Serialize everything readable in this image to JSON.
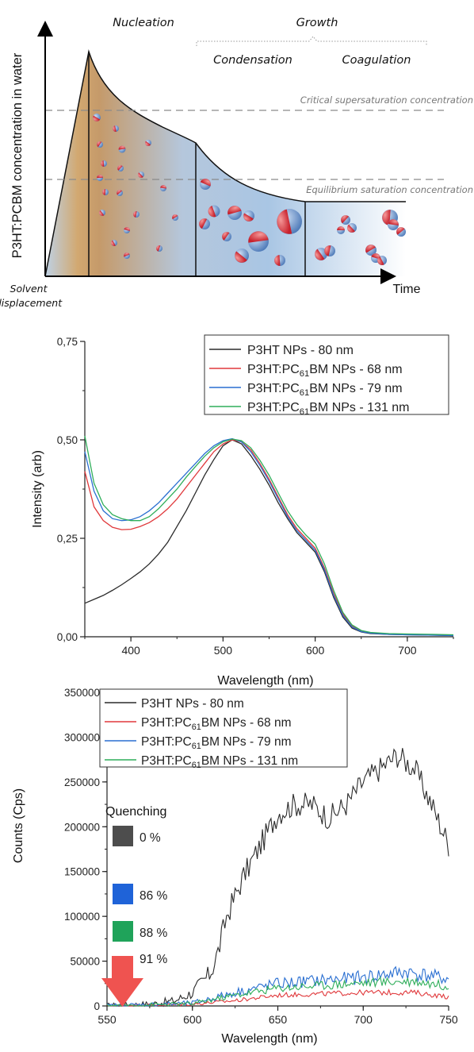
{
  "chart_data": [
    {
      "type": "diagram",
      "ylabel": "P3HT:PCBM concentration in water",
      "xlabel": "Time",
      "phases": {
        "nucleation": "Nucleation",
        "growth": "Growth",
        "condensation": "Condensation",
        "coagulation": "Coagulation",
        "solvent_line1": "Solvent",
        "solvent_line2": "displacement"
      },
      "levels": {
        "critical": "Critical supersaturation concentration",
        "equilibrium": "Equilibrium saturation concentration"
      }
    },
    {
      "type": "line",
      "xlabel": "Wavelength (nm)",
      "ylabel": "Intensity (arb)",
      "xlim": [
        350,
        750
      ],
      "ylim": [
        0,
        0.75
      ],
      "xticks": [
        400,
        500,
        600,
        700
      ],
      "yticks": [
        {
          "value": 0.0,
          "label": "0,00"
        },
        {
          "value": 0.25,
          "label": "0,25"
        },
        {
          "value": 0.5,
          "label": "0,50"
        },
        {
          "value": 0.75,
          "label": "0,75"
        }
      ],
      "legend_position": "top-right",
      "series": [
        {
          "name_main": "P3HT NPs - 80 nm",
          "name_sub": "",
          "name_tail": "",
          "color": "#2b2b2b",
          "points": [
            [
              350,
              0.085
            ],
            [
              360,
              0.095
            ],
            [
              370,
              0.105
            ],
            [
              380,
              0.118
            ],
            [
              390,
              0.132
            ],
            [
              400,
              0.148
            ],
            [
              410,
              0.165
            ],
            [
              420,
              0.185
            ],
            [
              430,
              0.21
            ],
            [
              440,
              0.24
            ],
            [
              450,
              0.28
            ],
            [
              460,
              0.32
            ],
            [
              470,
              0.365
            ],
            [
              480,
              0.41
            ],
            [
              490,
              0.45
            ],
            [
              500,
              0.485
            ],
            [
              510,
              0.5
            ],
            [
              520,
              0.49
            ],
            [
              530,
              0.46
            ],
            [
              540,
              0.425
            ],
            [
              550,
              0.385
            ],
            [
              560,
              0.34
            ],
            [
              570,
              0.3
            ],
            [
              580,
              0.265
            ],
            [
              590,
              0.24
            ],
            [
              600,
              0.215
            ],
            [
              610,
              0.165
            ],
            [
              620,
              0.1
            ],
            [
              630,
              0.05
            ],
            [
              640,
              0.022
            ],
            [
              650,
              0.012
            ],
            [
              660,
              0.008
            ],
            [
              680,
              0.006
            ],
            [
              700,
              0.005
            ],
            [
              730,
              0.004
            ],
            [
              750,
              0.003
            ]
          ]
        },
        {
          "name_main": "P3HT:PC",
          "name_sub": "61",
          "name_tail": "BM NPs - 68 nm",
          "color": "#e0383b",
          "points": [
            [
              350,
              0.42
            ],
            [
              360,
              0.33
            ],
            [
              370,
              0.295
            ],
            [
              380,
              0.278
            ],
            [
              390,
              0.272
            ],
            [
              400,
              0.273
            ],
            [
              410,
              0.28
            ],
            [
              420,
              0.29
            ],
            [
              430,
              0.305
            ],
            [
              440,
              0.325
            ],
            [
              450,
              0.35
            ],
            [
              460,
              0.38
            ],
            [
              470,
              0.41
            ],
            [
              480,
              0.44
            ],
            [
              490,
              0.47
            ],
            [
              500,
              0.49
            ],
            [
              510,
              0.5
            ],
            [
              520,
              0.495
            ],
            [
              530,
              0.475
            ],
            [
              540,
              0.44
            ],
            [
              550,
              0.4
            ],
            [
              560,
              0.355
            ],
            [
              570,
              0.31
            ],
            [
              580,
              0.275
            ],
            [
              590,
              0.25
            ],
            [
              600,
              0.225
            ],
            [
              610,
              0.175
            ],
            [
              620,
              0.11
            ],
            [
              630,
              0.058
            ],
            [
              640,
              0.028
            ],
            [
              650,
              0.015
            ],
            [
              660,
              0.01
            ],
            [
              680,
              0.007
            ],
            [
              700,
              0.006
            ],
            [
              730,
              0.005
            ],
            [
              750,
              0.004
            ]
          ]
        },
        {
          "name_main": "P3HT:PC",
          "name_sub": "61",
          "name_tail": "BM NPs - 79 nm",
          "color": "#2a6fd1",
          "points": [
            [
              350,
              0.47
            ],
            [
              360,
              0.37
            ],
            [
              370,
              0.32
            ],
            [
              380,
              0.3
            ],
            [
              390,
              0.295
            ],
            [
              400,
              0.297
            ],
            [
              410,
              0.305
            ],
            [
              420,
              0.32
            ],
            [
              430,
              0.34
            ],
            [
              440,
              0.365
            ],
            [
              450,
              0.39
            ],
            [
              460,
              0.415
            ],
            [
              470,
              0.44
            ],
            [
              480,
              0.465
            ],
            [
              490,
              0.485
            ],
            [
              500,
              0.498
            ],
            [
              510,
              0.503
            ],
            [
              520,
              0.495
            ],
            [
              530,
              0.47
            ],
            [
              540,
              0.435
            ],
            [
              550,
              0.395
            ],
            [
              560,
              0.35
            ],
            [
              570,
              0.305
            ],
            [
              580,
              0.27
            ],
            [
              590,
              0.245
            ],
            [
              600,
              0.22
            ],
            [
              610,
              0.17
            ],
            [
              620,
              0.105
            ],
            [
              630,
              0.054
            ],
            [
              640,
              0.025
            ],
            [
              650,
              0.013
            ],
            [
              660,
              0.009
            ],
            [
              680,
              0.006
            ],
            [
              700,
              0.005
            ],
            [
              730,
              0.004
            ],
            [
              750,
              0.003
            ]
          ]
        },
        {
          "name_main": "P3HT:PC",
          "name_sub": "61",
          "name_tail": "BM NPs - 131 nm",
          "color": "#2fae5a",
          "points": [
            [
              350,
              0.51
            ],
            [
              360,
              0.39
            ],
            [
              370,
              0.335
            ],
            [
              380,
              0.31
            ],
            [
              390,
              0.3
            ],
            [
              400,
              0.295
            ],
            [
              410,
              0.295
            ],
            [
              420,
              0.305
            ],
            [
              430,
              0.325
            ],
            [
              440,
              0.35
            ],
            [
              450,
              0.375
            ],
            [
              460,
              0.405
            ],
            [
              470,
              0.432
            ],
            [
              480,
              0.458
            ],
            [
              490,
              0.48
            ],
            [
              500,
              0.495
            ],
            [
              510,
              0.502
            ],
            [
              520,
              0.498
            ],
            [
              530,
              0.48
            ],
            [
              540,
              0.448
            ],
            [
              550,
              0.41
            ],
            [
              560,
              0.365
            ],
            [
              570,
              0.32
            ],
            [
              580,
              0.285
            ],
            [
              590,
              0.258
            ],
            [
              600,
              0.235
            ],
            [
              610,
              0.185
            ],
            [
              620,
              0.118
            ],
            [
              630,
              0.062
            ],
            [
              640,
              0.03
            ],
            [
              650,
              0.016
            ],
            [
              660,
              0.011
            ],
            [
              680,
              0.008
            ],
            [
              700,
              0.007
            ],
            [
              730,
              0.006
            ],
            [
              750,
              0.005
            ]
          ]
        }
      ]
    },
    {
      "type": "line",
      "xlabel": "Wavelength (nm)",
      "ylabel": "Counts (Cps)",
      "xlim": [
        550,
        750
      ],
      "ylim": [
        0,
        350000
      ],
      "xticks": [
        550,
        600,
        650,
        700,
        750
      ],
      "yticks": [
        0,
        50000,
        100000,
        150000,
        200000,
        250000,
        300000,
        350000
      ],
      "legend_position": "top-left",
      "series": [
        {
          "name_main": "P3HT NPs - 80 nm",
          "name_sub": "",
          "name_tail": "",
          "color": "#2b2b2b",
          "noise": 14000,
          "anchors": [
            [
              550,
              0
            ],
            [
              575,
              2000
            ],
            [
              590,
              6000
            ],
            [
              600,
              15000
            ],
            [
              610,
              35000
            ],
            [
              615,
              60000
            ],
            [
              620,
              100000
            ],
            [
              630,
              145000
            ],
            [
              640,
              180000
            ],
            [
              650,
              215000
            ],
            [
              660,
              225000
            ],
            [
              670,
              225000
            ],
            [
              680,
              210000
            ],
            [
              690,
              225000
            ],
            [
              700,
              250000
            ],
            [
              710,
              265000
            ],
            [
              720,
              280000
            ],
            [
              730,
              265000
            ],
            [
              740,
              225000
            ],
            [
              750,
              180000
            ]
          ]
        },
        {
          "name_main": "P3HT:PC",
          "name_sub": "61",
          "name_tail": "BM NPs - 68 nm",
          "color": "#e0383b",
          "noise": 6000,
          "anchors": [
            [
              550,
              0
            ],
            [
              600,
              2000
            ],
            [
              625,
              6000
            ],
            [
              650,
              12000
            ],
            [
              700,
              15000
            ],
            [
              730,
              15000
            ],
            [
              750,
              10000
            ]
          ]
        },
        {
          "name_main": "P3HT:PC",
          "name_sub": "61",
          "name_tail": "BM NPs - 79 nm",
          "color": "#2a6fd1",
          "noise": 10000,
          "anchors": [
            [
              550,
              0
            ],
            [
              600,
              3000
            ],
            [
              625,
              15000
            ],
            [
              650,
              25000
            ],
            [
              700,
              32000
            ],
            [
              725,
              38000
            ],
            [
              750,
              30000
            ]
          ]
        },
        {
          "name_main": "P3HT:PC",
          "name_sub": "61",
          "name_tail": "BM NPs - 131 nm",
          "color": "#2fae5a",
          "noise": 8000,
          "anchors": [
            [
              550,
              0
            ],
            [
              600,
              2500
            ],
            [
              625,
              12000
            ],
            [
              650,
              20000
            ],
            [
              700,
              26000
            ],
            [
              730,
              28000
            ],
            [
              750,
              22000
            ]
          ]
        }
      ],
      "quenching": {
        "title": "Quenching",
        "items": [
          {
            "label": "0 %",
            "color": "#4d4d4d"
          },
          {
            "label": "86 %",
            "color": "#1f63d8"
          },
          {
            "label": "88 %",
            "color": "#1fa35a"
          },
          {
            "label": "91 %",
            "color": "#ef5350"
          }
        ]
      }
    }
  ]
}
